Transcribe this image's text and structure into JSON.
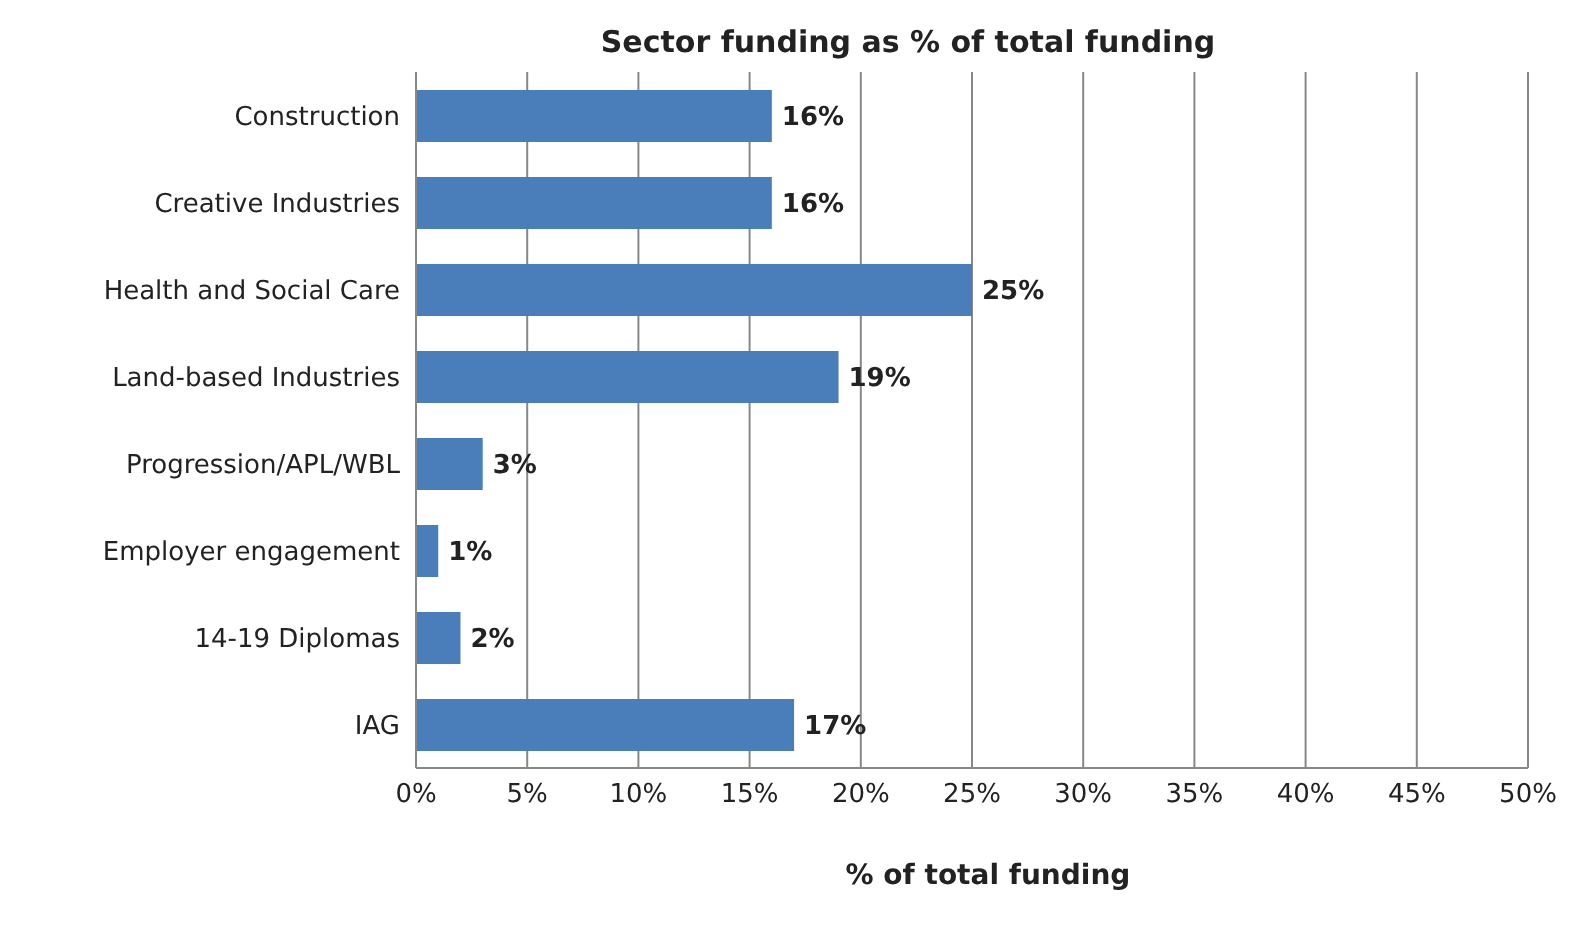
{
  "chart_data": {
    "type": "bar",
    "orientation": "horizontal",
    "title": "Sector funding as % of total funding",
    "xlabel": "% of total funding",
    "categories": [
      "Construction",
      "Creative Industries",
      "Health and Social Care",
      "Land-based Industries",
      "Progression/APL/WBL",
      "Employer engagement",
      "14-19 Diplomas",
      "IAG"
    ],
    "values": [
      16,
      16,
      25,
      19,
      3,
      1,
      2,
      17
    ],
    "value_labels": [
      "16%",
      "16%",
      "25%",
      "19%",
      "3%",
      "1%",
      "2%",
      "17%"
    ],
    "color": "#4a7ebb",
    "xlim": [
      0,
      50
    ],
    "xticks": [
      {
        "value": 0,
        "label": "0%"
      },
      {
        "value": 5,
        "label": "5%"
      },
      {
        "value": 10,
        "label": "10%"
      },
      {
        "value": 15,
        "label": "15%"
      },
      {
        "value": 20,
        "label": "20%"
      },
      {
        "value": 25,
        "label": "25%"
      },
      {
        "value": 30,
        "label": "30%"
      },
      {
        "value": 35,
        "label": "35%"
      },
      {
        "value": 40,
        "label": "40%"
      },
      {
        "value": 45,
        "label": "45%"
      },
      {
        "value": 50,
        "label": "50%"
      }
    ],
    "grid": "x",
    "legend": false
  }
}
